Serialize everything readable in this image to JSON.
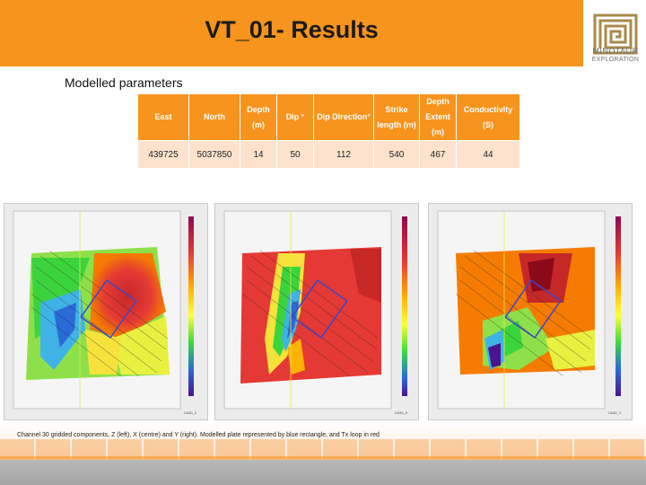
{
  "header": {
    "title": "VT_01- Results"
  },
  "logo": {
    "icon": "minotaur-maze-logo-icon",
    "line1": "MINOTAUR",
    "line2": "EXPLORATION",
    "color": "#a88a4a"
  },
  "section": {
    "subtitle": "Modelled parameters"
  },
  "parameters_table": {
    "headers": [
      "East",
      "North",
      "Depth (m)",
      "Dip °",
      "Dip Direction°",
      "Strike length (m)",
      "Depth Extent (m)",
      "Conductivity (S)"
    ],
    "values": [
      "439725",
      "5037850",
      "14",
      "50",
      "112",
      "540",
      "467",
      "44"
    ]
  },
  "maps": [
    {
      "component": "Z",
      "label": "Ch30_Z"
    },
    {
      "component": "X",
      "label": "Ch30_X"
    },
    {
      "component": "Y",
      "label": "Ch30_Y"
    }
  ],
  "caption": {
    "text": "Channel 30 gridded components, Z (left), X (centre) and Y (right).  Modelled plate represented by blue rectangle, and Tx loop in red"
  },
  "colors": {
    "accent": "#f7941d",
    "table_row": "#fde3cd",
    "footer": "#a8a8a8"
  }
}
